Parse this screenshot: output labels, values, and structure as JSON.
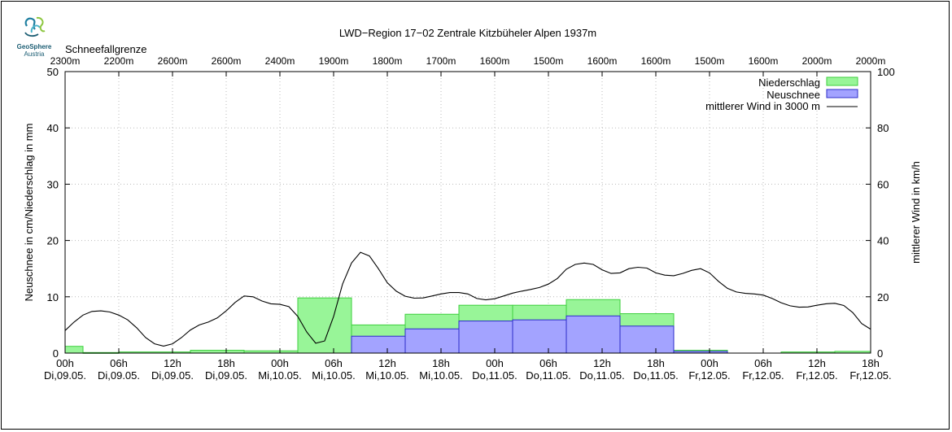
{
  "logo": {
    "line1": "GeoSphere",
    "line2": "Austria"
  },
  "chart_data": {
    "type": "bar",
    "title": "LWD−Region 17−02 Zentrale Kitzbüheler Alpen 1937m",
    "ylabel": "Neuschnee in cm/Niederschlag in mm",
    "y2label": "mittlerer Wind in km/h",
    "ylim": [
      0,
      50
    ],
    "y2lim": [
      0,
      100
    ],
    "yticks": [
      "0",
      "10",
      "20",
      "30",
      "40",
      "50"
    ],
    "y2ticks": [
      "0",
      "20",
      "40",
      "60",
      "80",
      "100"
    ],
    "xlim_hours": [
      0,
      90
    ],
    "x_ticks": [
      {
        "time": "00h",
        "date": "Di,09.05."
      },
      {
        "time": "06h",
        "date": "Di,09.05."
      },
      {
        "time": "12h",
        "date": "Di,09.05."
      },
      {
        "time": "18h",
        "date": "Di,09.05."
      },
      {
        "time": "00h",
        "date": "Mi,10.05."
      },
      {
        "time": "06h",
        "date": "Mi,10.05."
      },
      {
        "time": "12h",
        "date": "Mi,10.05."
      },
      {
        "time": "18h",
        "date": "Mi,10.05."
      },
      {
        "time": "00h",
        "date": "Do,11.05."
      },
      {
        "time": "06h",
        "date": "Do,11.05."
      },
      {
        "time": "12h",
        "date": "Do,11.05."
      },
      {
        "time": "18h",
        "date": "Do,11.05."
      },
      {
        "time": "00h",
        "date": "Fr,12.05."
      },
      {
        "time": "06h",
        "date": "Fr,12.05."
      },
      {
        "time": "12h",
        "date": "Fr,12.05."
      },
      {
        "time": "18h",
        "date": "Fr,12.05."
      }
    ],
    "snowline_label": "Schneefallgrenze",
    "snowline": [
      "2300m",
      "2200m",
      "2600m",
      "2600m",
      "2400m",
      "1900m",
      "1800m",
      "1700m",
      "1600m",
      "1500m",
      "1600m",
      "1600m",
      "1500m",
      "1600m",
      "2000m",
      "2000m"
    ],
    "legend": {
      "position": "top-right",
      "precip": "Niederschlag",
      "snow": "Neuschnee",
      "wind": "mittlerer Wind in 3000 m"
    },
    "colors": {
      "precip_fill": "#98f598",
      "precip_edge": "#3ecf3e",
      "snow_fill": "#a3a3ff",
      "snow_edge": "#2d2dc8",
      "wind": "#000000",
      "grid": "#bbbbbb"
    },
    "precipitation": [
      {
        "start": 0,
        "end": 2,
        "value": 1.2
      },
      {
        "start": 2,
        "end": 6,
        "value": 0.1
      },
      {
        "start": 6,
        "end": 14,
        "value": 0.2
      },
      {
        "start": 14,
        "end": 20,
        "value": 0.5
      },
      {
        "start": 20,
        "end": 26,
        "value": 0.4
      },
      {
        "start": 26,
        "end": 32,
        "value": 9.8
      },
      {
        "start": 32,
        "end": 38,
        "value": 5.0
      },
      {
        "start": 38,
        "end": 44,
        "value": 6.9
      },
      {
        "start": 44,
        "end": 50,
        "value": 8.5
      },
      {
        "start": 50,
        "end": 56,
        "value": 8.5
      },
      {
        "start": 56,
        "end": 62,
        "value": 9.5
      },
      {
        "start": 62,
        "end": 68,
        "value": 7.0
      },
      {
        "start": 68,
        "end": 74,
        "value": 0.5
      },
      {
        "start": 74,
        "end": 80,
        "value": 0.0
      },
      {
        "start": 80,
        "end": 86,
        "value": 0.2
      },
      {
        "start": 86,
        "end": 90,
        "value": 0.3
      }
    ],
    "new_snow": [
      {
        "start": 32,
        "end": 38,
        "value": 3.0
      },
      {
        "start": 38,
        "end": 44,
        "value": 4.3
      },
      {
        "start": 44,
        "end": 50,
        "value": 5.7
      },
      {
        "start": 50,
        "end": 56,
        "value": 5.9
      },
      {
        "start": 56,
        "end": 62,
        "value": 6.6
      },
      {
        "start": 62,
        "end": 68,
        "value": 4.8
      },
      {
        "start": 68,
        "end": 74,
        "value": 0.3
      }
    ],
    "wind": [
      [
        0,
        8
      ],
      [
        1,
        11
      ],
      [
        2,
        13.5
      ],
      [
        3,
        14.8
      ],
      [
        4,
        15
      ],
      [
        5,
        14.6
      ],
      [
        6,
        13.5
      ],
      [
        7,
        11.8
      ],
      [
        8,
        9
      ],
      [
        9,
        5.5
      ],
      [
        10,
        3.3
      ],
      [
        11,
        2.5
      ],
      [
        12,
        3.3
      ],
      [
        13,
        5.5
      ],
      [
        14,
        8.2
      ],
      [
        15,
        10
      ],
      [
        16,
        11
      ],
      [
        17,
        12.5
      ],
      [
        18,
        15
      ],
      [
        19,
        18
      ],
      [
        20,
        20.3
      ],
      [
        21,
        20
      ],
      [
        22,
        18.5
      ],
      [
        23,
        17.5
      ],
      [
        24,
        17.3
      ],
      [
        25,
        16.5
      ],
      [
        26,
        13
      ],
      [
        27,
        7.5
      ],
      [
        28,
        3.5
      ],
      [
        29,
        4.3
      ],
      [
        30,
        13
      ],
      [
        31,
        24.5
      ],
      [
        32,
        32
      ],
      [
        33,
        35.8
      ],
      [
        34,
        34.5
      ],
      [
        35,
        30
      ],
      [
        36,
        25
      ],
      [
        37,
        22
      ],
      [
        38,
        20.2
      ],
      [
        39,
        19.5
      ],
      [
        40,
        19.6
      ],
      [
        41,
        20.3
      ],
      [
        42,
        21
      ],
      [
        43,
        21.5
      ],
      [
        44,
        21.5
      ],
      [
        45,
        21
      ],
      [
        46,
        19.4
      ],
      [
        47,
        18.9
      ],
      [
        48,
        19.3
      ],
      [
        49,
        20.3
      ],
      [
        50,
        21.3
      ],
      [
        51,
        22
      ],
      [
        52,
        22.6
      ],
      [
        53,
        23.3
      ],
      [
        54,
        24.5
      ],
      [
        55,
        26.5
      ],
      [
        56,
        29.8
      ],
      [
        57,
        31.5
      ],
      [
        58,
        32
      ],
      [
        59,
        31.5
      ],
      [
        60,
        29.6
      ],
      [
        61,
        28.3
      ],
      [
        62,
        28.5
      ],
      [
        63,
        30
      ],
      [
        64,
        30.5
      ],
      [
        65,
        30.2
      ],
      [
        66,
        28.5
      ],
      [
        67,
        27.7
      ],
      [
        68,
        27.5
      ],
      [
        69,
        28.3
      ],
      [
        70,
        29.4
      ],
      [
        71,
        30
      ],
      [
        72,
        28.5
      ],
      [
        73,
        25.5
      ],
      [
        74,
        23
      ],
      [
        75,
        21.7
      ],
      [
        76,
        21.2
      ],
      [
        77,
        21
      ],
      [
        78,
        20.6
      ],
      [
        79,
        19.4
      ],
      [
        80,
        17.9
      ],
      [
        81,
        16.8
      ],
      [
        82,
        16.3
      ],
      [
        83,
        16.4
      ],
      [
        84,
        17
      ],
      [
        85,
        17.5
      ],
      [
        86,
        17.7
      ],
      [
        87,
        16.9
      ],
      [
        88,
        14.4
      ],
      [
        89,
        10.5
      ],
      [
        90,
        8.5
      ]
    ]
  }
}
